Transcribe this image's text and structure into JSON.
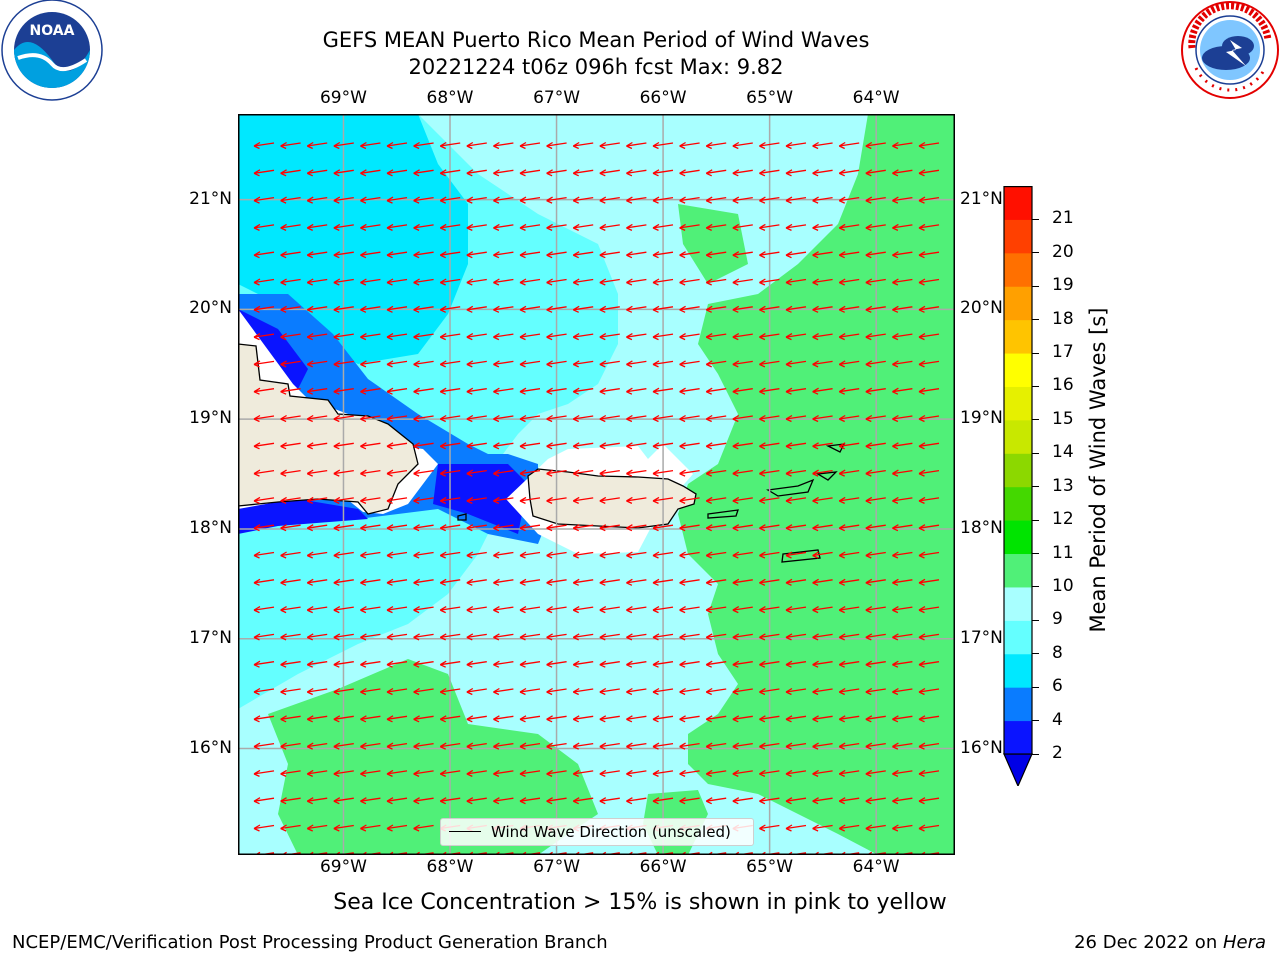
{
  "title": {
    "line1": "GEFS MEAN Puerto Rico Mean Period of Wind Waves",
    "line2": "20221224 t06z 096h fcst   Max: 9.82"
  },
  "logos": {
    "left": {
      "name": "noaa-logo",
      "text": "NOAA",
      "ring_text": "NATIONAL OCEANIC AND ATMOSPHERIC ADMINISTRATION · U.S. DEPARTMENT OF COMMERCE"
    },
    "right": {
      "name": "nws-logo",
      "ring_text": "NATIONAL WEATHER SERVICE"
    }
  },
  "map": {
    "region": "Puerto Rico",
    "lon_range": [
      -69.99,
      -63.26
    ],
    "lat_range": [
      15.03,
      21.78
    ],
    "lon_ticks": [
      "69°W",
      "68°W",
      "67°W",
      "66°W",
      "65°W",
      "64°W"
    ],
    "lat_ticks": [
      "21°N",
      "20°N",
      "19°N",
      "18°N",
      "17°N",
      "16°N"
    ],
    "grid": true,
    "land_color": "#efebdc",
    "arrow_color": "#ff0000",
    "wind_wave_direction": "toward west"
  },
  "legend": {
    "label": "Wind Wave Direction (unscaled)",
    "placement": "lower-center"
  },
  "colorbar": {
    "label": "Mean Period of Wind Waves [s]",
    "levels": [
      2,
      4,
      6,
      8,
      9,
      10,
      11,
      12,
      13,
      14,
      15,
      16,
      17,
      18,
      19,
      20,
      21
    ],
    "colors": [
      "#0a14ff",
      "#0a7cff",
      "#00e8ff",
      "#64ffff",
      "#a8ffff",
      "#50f078",
      "#00e400",
      "#44d800",
      "#8cd800",
      "#c8e800",
      "#e6f000",
      "#ffff00",
      "#ffc400",
      "#ffa000",
      "#ff7000",
      "#ff4000",
      "#ff1000"
    ],
    "extend": "min",
    "extend_color": "#0000e6"
  },
  "notes": {
    "sea_ice": "Sea Ice Concentration > 15% is shown in pink to yellow"
  },
  "footer": {
    "left": "NCEP/EMC/Verification Post Processing Product Generation Branch",
    "right_prefix": "26 Dec 2022 on ",
    "right_host": "Hera"
  }
}
